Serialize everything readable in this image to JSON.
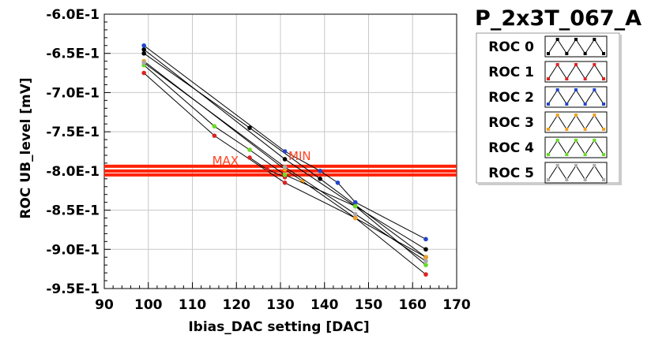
{
  "chart_data": {
    "type": "line",
    "title": "P_2x3T_067_A",
    "xlabel": "Ibias_DAC setting [DAC]",
    "ylabel": "ROC UB_level [mV]",
    "xlim": [
      90,
      170
    ],
    "ylim": [
      -95,
      -60
    ],
    "x_ticks": [
      90,
      100,
      110,
      120,
      130,
      140,
      150,
      160,
      170
    ],
    "x_tick_labels": [
      "90",
      "100",
      "110",
      "120",
      "130",
      "140",
      "150",
      "160",
      "170"
    ],
    "y_ticks": [
      -60,
      -65,
      -70,
      -75,
      -80,
      -85,
      -90,
      -95
    ],
    "y_tick_labels": [
      "-6.0E-1",
      "-6.5E-1",
      "-7.0E-1",
      "-7.5E-1",
      "-8.0E-1",
      "-8.5E-1",
      "-9.0E-1",
      "-9.5E-1"
    ],
    "grid": true,
    "legend_position": "top-right",
    "series": [
      {
        "name": "ROC 0",
        "color": "#000000",
        "x": [
          99,
          131,
          147,
          163
        ],
        "y": [
          -64.5,
          -78.5,
          -84.5,
          -90.0
        ]
      },
      {
        "name": "ROC 0",
        "color": "#000000",
        "x": [
          99,
          123,
          139,
          163
        ],
        "y": [
          -65.0,
          -74.5,
          -81.0,
          -91.0
        ]
      },
      {
        "name": "ROC 1",
        "color": "#dd2222",
        "x": [
          99,
          115,
          131,
          147,
          163
        ],
        "y": [
          -67.5,
          -75.5,
          -81.5,
          -86.0,
          -93.2
        ]
      },
      {
        "name": "ROC 1",
        "color": "#dd2222",
        "x": [
          123,
          127,
          131
        ],
        "y": [
          -78.3,
          -79.8,
          -80.8
        ]
      },
      {
        "name": "ROC 2",
        "color": "#2244cc",
        "x": [
          99,
          131,
          139,
          143,
          147,
          163
        ],
        "y": [
          -64.0,
          -77.5,
          -80.0,
          -81.5,
          -84.0,
          -88.7
        ]
      },
      {
        "name": "ROC 3",
        "color": "#f0a020",
        "x": [
          99,
          131,
          135,
          147,
          163
        ],
        "y": [
          -66.0,
          -79.8,
          -81.3,
          -86.0,
          -91.0
        ]
      },
      {
        "name": "ROC 4",
        "color": "#66dd22",
        "x": [
          99,
          115,
          123,
          131,
          147,
          163
        ],
        "y": [
          -66.5,
          -74.3,
          -77.3,
          -80.5,
          -84.5,
          -92.0
        ]
      },
      {
        "name": "ROC 5",
        "color": "#aaaaaa",
        "x": [
          99,
          131,
          147,
          163
        ],
        "y": [
          -66.2,
          -79.5,
          -85.5,
          -91.5
        ]
      }
    ],
    "hlines": [
      {
        "y": -79.4,
        "color": "#ff2200"
      },
      {
        "y": -80.0,
        "color": "#ff2200"
      },
      {
        "y": -80.5,
        "color": "#ff2200"
      }
    ],
    "annotations": [
      {
        "text": "MAX",
        "x": 114.5,
        "y": -79.2,
        "color": "#ff4422"
      },
      {
        "text": "MIN",
        "x": 131.8,
        "y": -78.6,
        "color": "#ff4422"
      }
    ]
  }
}
